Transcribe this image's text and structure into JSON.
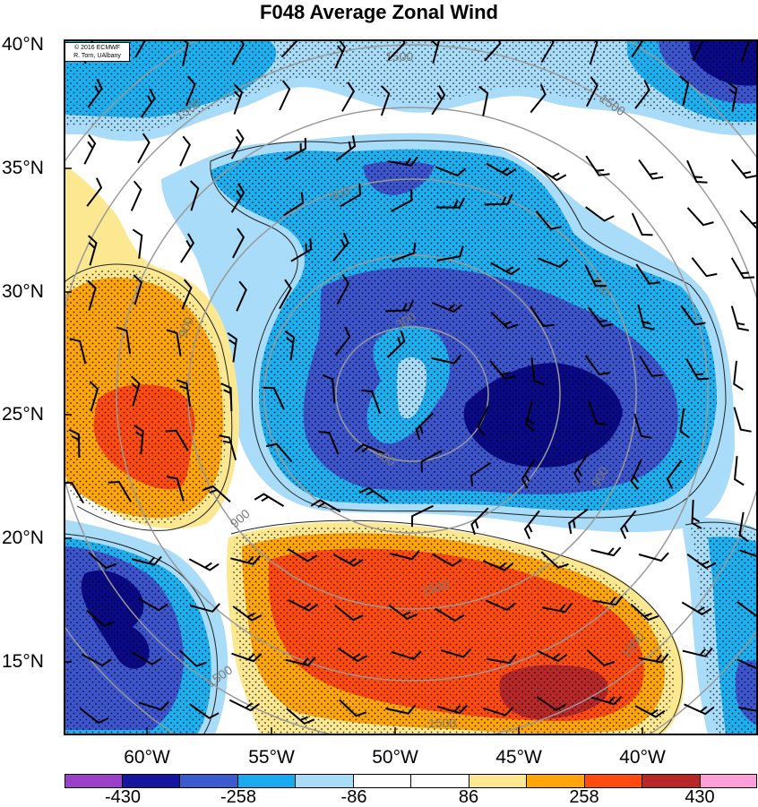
{
  "title": "F048 Average Zonal Wind",
  "credit": {
    "line1": "© 2016 ECMWF",
    "line2": "R. Torn, UAlbany"
  },
  "lat_labels": [
    "40°N",
    "35°N",
    "30°N",
    "25°N",
    "20°N",
    "15°N"
  ],
  "lon_labels": [
    "60°W",
    "55°W",
    "50°W",
    "45°W",
    "40°W"
  ],
  "contour_labels": [
    "1500",
    "1500",
    "1500",
    "900",
    "900",
    "900",
    "900",
    "300",
    "300",
    "900",
    "1500",
    "1500",
    "1500",
    "1500"
  ],
  "legend": {
    "tick_labels": [
      "-430",
      "-258",
      "-86",
      "86",
      "258",
      "430"
    ],
    "colors": [
      "#9b40c8",
      "#1515a0",
      "#3c5ad0",
      "#1aaaf0",
      "#a8dcf8",
      "#ffffff",
      "#ffffff",
      "#fde892",
      "#fda50a",
      "#ff4a10",
      "#b82828",
      "#ff9ed8"
    ]
  },
  "palette": {
    "dark_blue": "#0a0a88",
    "mid_blue": "#3d55cc",
    "cyan": "#1db0f0",
    "light_blue": "#a8dcf8",
    "yellow": "#fde892",
    "orange": "#fda50a",
    "red_orange": "#ff4a10",
    "dark_red": "#b82828",
    "contour_gray": "#9a9a9a"
  }
}
